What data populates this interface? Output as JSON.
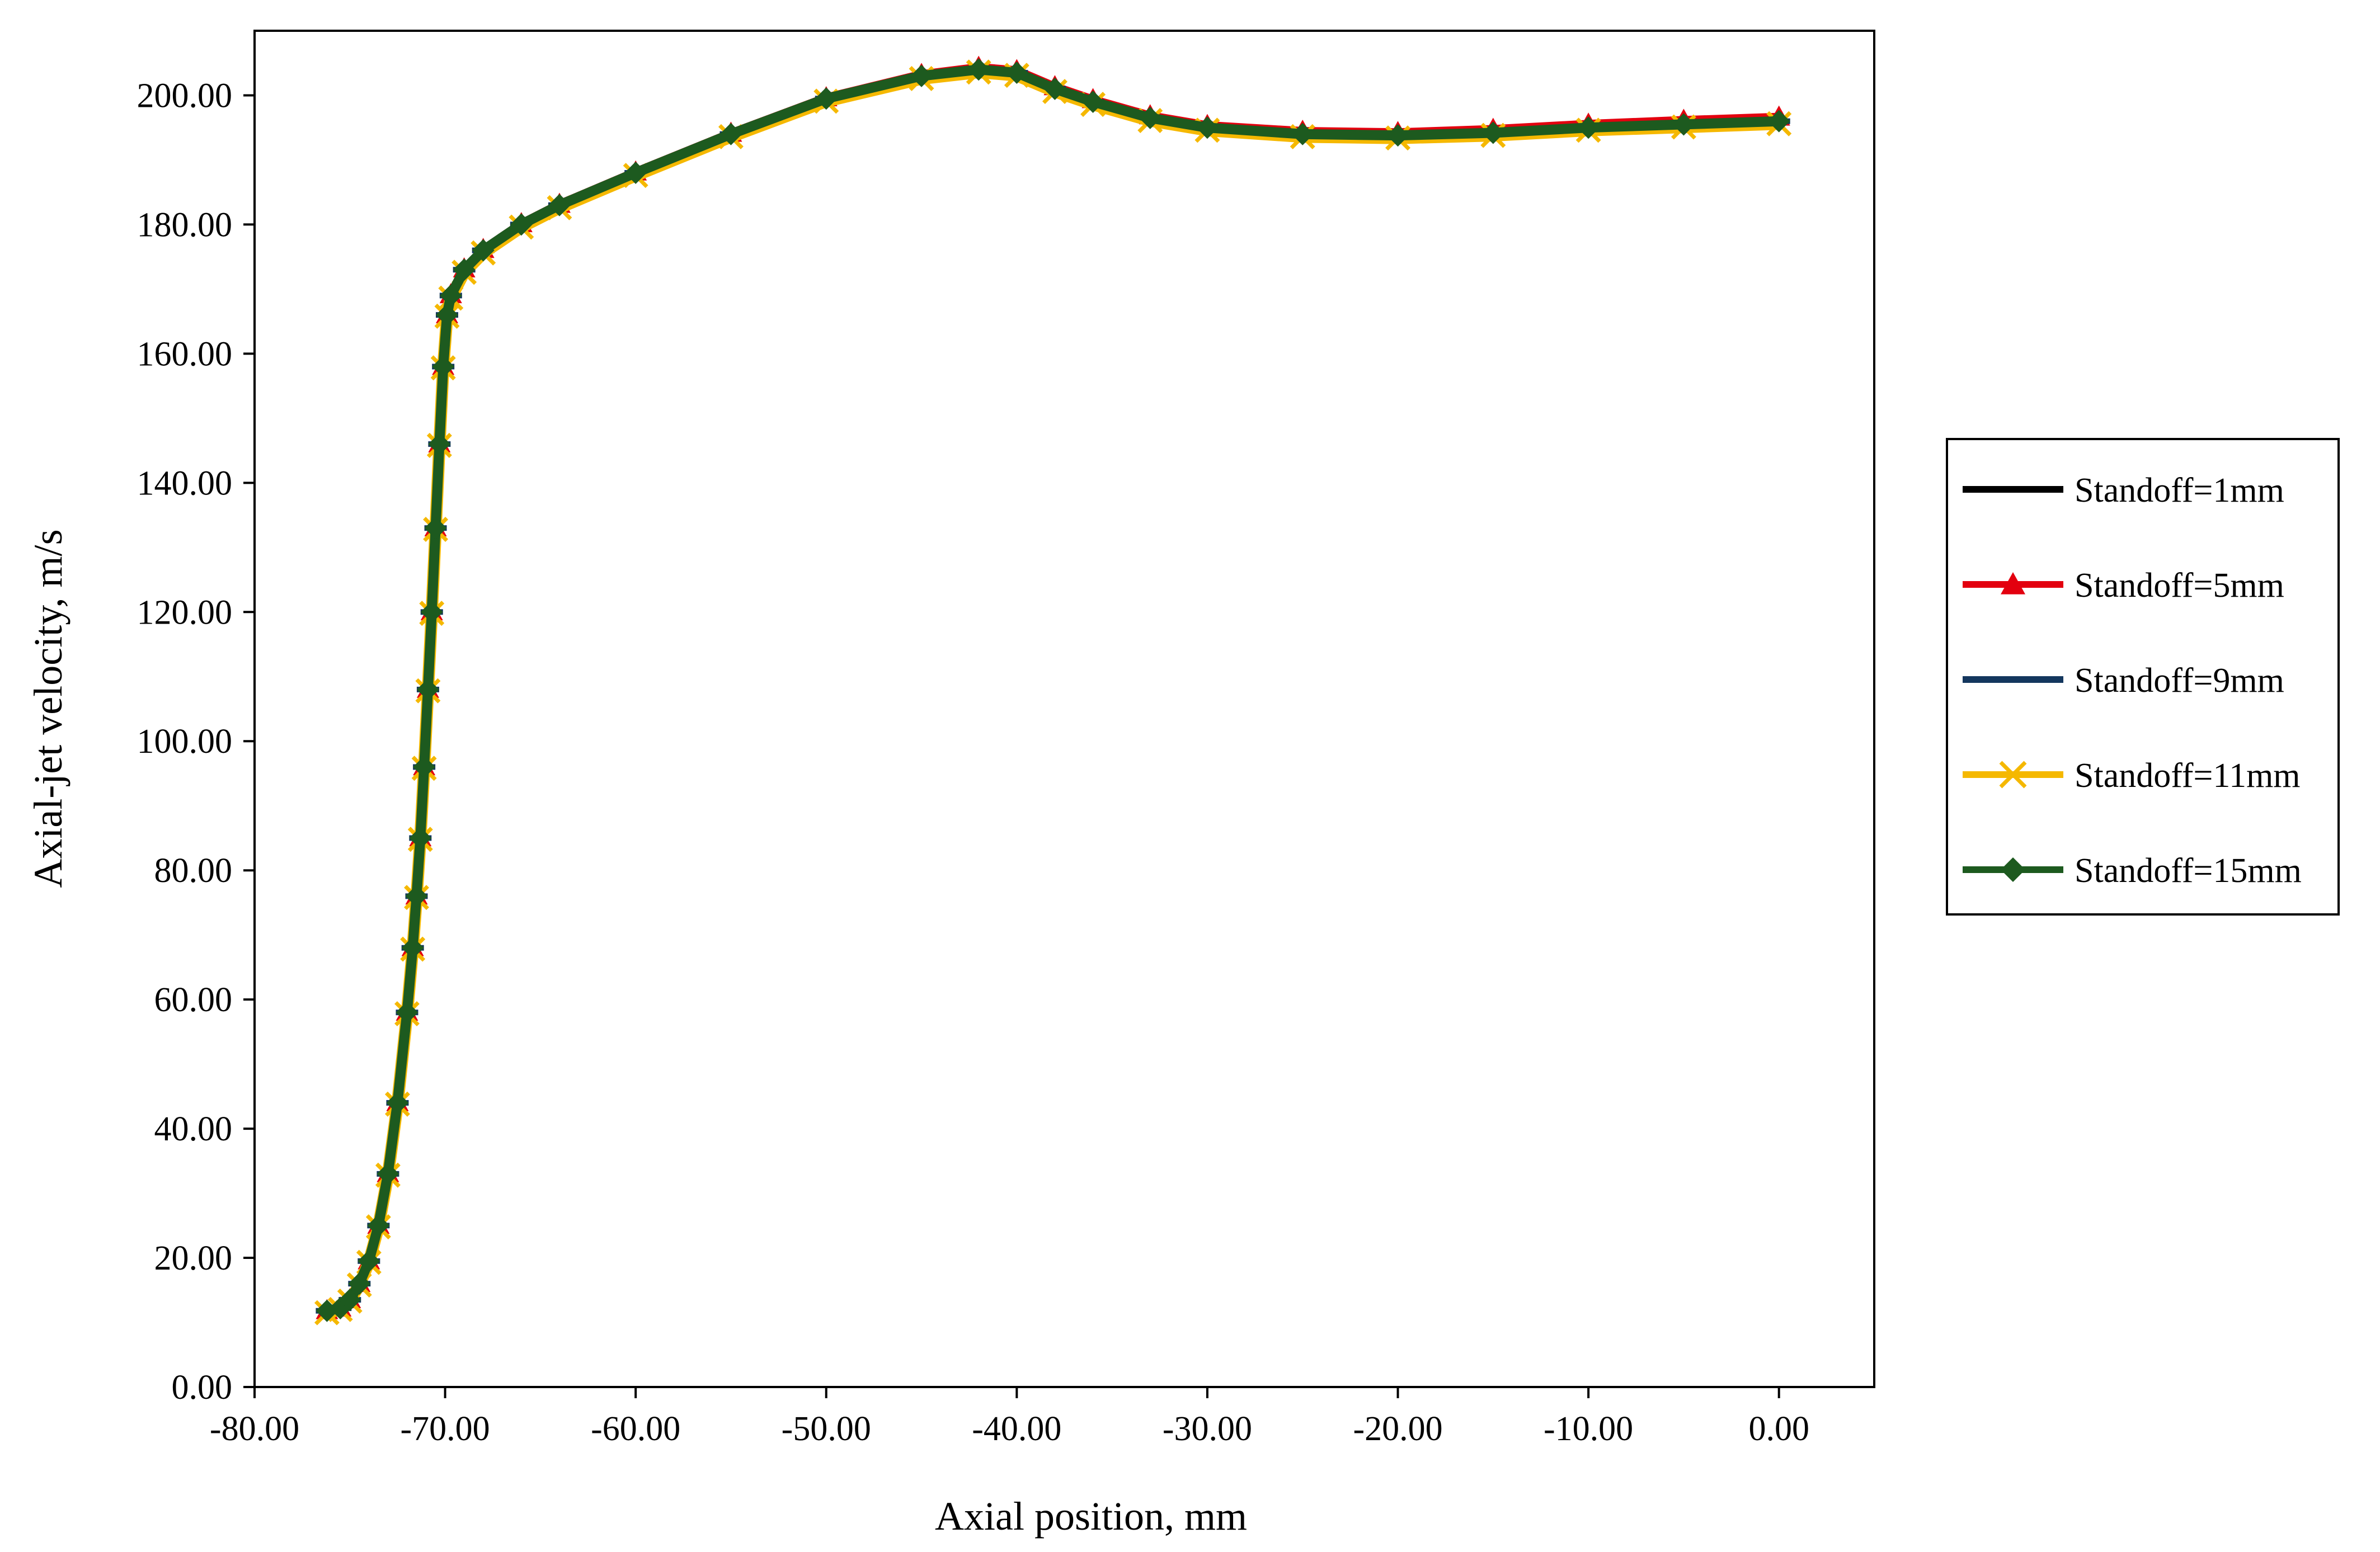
{
  "chart_data": {
    "type": "line",
    "title": "",
    "xlabel": "Axial position, mm",
    "ylabel": "Axial-jet velocity, m/s",
    "xlim": [
      -80,
      5
    ],
    "ylim": [
      0,
      210
    ],
    "x_ticks": [
      -80,
      -70,
      -60,
      -50,
      -40,
      -30,
      -20,
      -10,
      0
    ],
    "x_tick_labels": [
      "-80.00",
      "-70.00",
      "-60.00",
      "-50.00",
      "-40.00",
      "-30.00",
      "-20.00",
      "-10.00",
      "0.00"
    ],
    "y_ticks": [
      0,
      20,
      40,
      60,
      80,
      100,
      120,
      140,
      160,
      180,
      200
    ],
    "y_tick_labels": [
      "0.00",
      "20.00",
      "40.00",
      "60.00",
      "80.00",
      "100.00",
      "120.00",
      "140.00",
      "160.00",
      "180.00",
      "200.00"
    ],
    "grid": false,
    "legend_position": "right",
    "x": [
      -76.2,
      -75.5,
      -75.0,
      -74.5,
      -74.0,
      -73.5,
      -73.0,
      -72.5,
      -72.0,
      -71.7,
      -71.5,
      -71.3,
      -71.1,
      -70.9,
      -70.7,
      -70.5,
      -70.3,
      -70.1,
      -69.9,
      -69.7,
      -69.0,
      -68.0,
      -66.0,
      -64.0,
      -60.0,
      -55.0,
      -50.0,
      -45.0,
      -42.0,
      -40.0,
      -38.0,
      -36.0,
      -33.0,
      -30.0,
      -25.0,
      -20.0,
      -15.0,
      -10.0,
      -5.0,
      0.0
    ],
    "series": [
      {
        "name": "Standoff=1mm",
        "color": "#000000",
        "marker": "none",
        "values": [
          11.8,
          12.2,
          13.5,
          16,
          19.5,
          25,
          33,
          44,
          58,
          68,
          76,
          85,
          96,
          108,
          120,
          133,
          146,
          158,
          166,
          169,
          173,
          176,
          180,
          183,
          188,
          194,
          199.5,
          203,
          204,
          203.5,
          201,
          199,
          196.5,
          195,
          194,
          193.8,
          194.2,
          195,
          195.5,
          196
        ]
      },
      {
        "name": "Standoff=5mm",
        "color": "#e3000f",
        "marker": "triangle",
        "values": [
          11.9,
          12.3,
          13.6,
          16.1,
          19.6,
          25.1,
          33.1,
          44.1,
          58.1,
          68.1,
          76.1,
          85.1,
          96.1,
          108.1,
          120.1,
          133.1,
          146.1,
          158.1,
          166.1,
          169.2,
          173.2,
          176.2,
          180.2,
          183.2,
          188.2,
          194.2,
          199.7,
          203.3,
          204.4,
          203.9,
          201.4,
          199.4,
          196.9,
          195.4,
          194.5,
          194.3,
          194.8,
          195.6,
          196.2,
          196.7
        ]
      },
      {
        "name": "Standoff=9mm",
        "color": "#14375e",
        "marker": "dash",
        "values": [
          11.8,
          12.2,
          13.5,
          16,
          19.5,
          25,
          33,
          44,
          58,
          68,
          76,
          85,
          96,
          108,
          120,
          133,
          146,
          158,
          166,
          169,
          173,
          176,
          180,
          183,
          188,
          194,
          199.5,
          203,
          204,
          203.5,
          201,
          199,
          196.5,
          195,
          194,
          193.8,
          194.2,
          195,
          195.5,
          196
        ]
      },
      {
        "name": "Standoff=11mm",
        "color": "#f5b800",
        "marker": "x",
        "values": [
          11.5,
          12.0,
          13.3,
          15.8,
          19.3,
          24.8,
          32.8,
          43.8,
          57.8,
          67.8,
          75.8,
          84.8,
          95.8,
          107.8,
          119.8,
          132.8,
          145.8,
          157.8,
          165.8,
          168.6,
          172.6,
          175.6,
          179.6,
          182.6,
          187.6,
          193.6,
          199.1,
          202.6,
          203.6,
          203.1,
          200.6,
          198.6,
          196.1,
          194.6,
          193.6,
          193.4,
          193.8,
          194.6,
          195.1,
          195.6
        ]
      },
      {
        "name": "Standoff=15mm",
        "color": "#1d5a1f",
        "marker": "diamond",
        "values": [
          11.8,
          12.2,
          13.5,
          16,
          19.5,
          25,
          33,
          44,
          58,
          68,
          76,
          85,
          96,
          108,
          120,
          133,
          146,
          158,
          166,
          169,
          173,
          176,
          180,
          183,
          188,
          194,
          199.5,
          203,
          204,
          203.5,
          201,
          199,
          196.5,
          195,
          194,
          193.8,
          194.2,
          195,
          195.5,
          196
        ]
      }
    ]
  }
}
